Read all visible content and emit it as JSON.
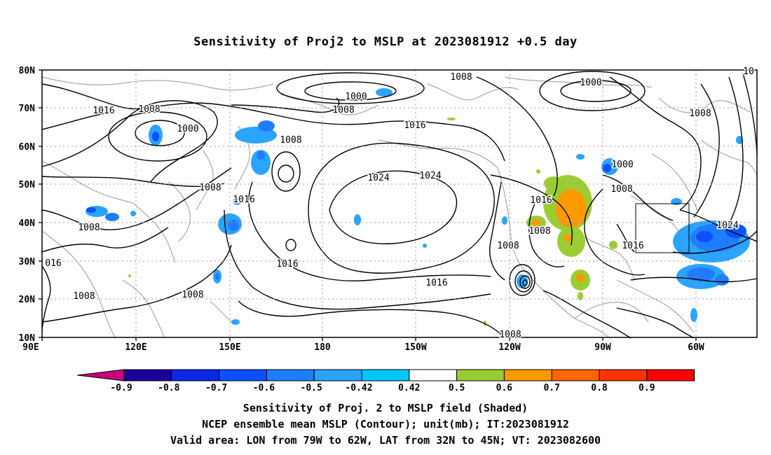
{
  "title": "Sensitivity of Proj2 to MSLP at 2023081912 +0.5 day",
  "map": {
    "lat_labels": [
      "80N",
      "70N",
      "60N",
      "50N",
      "40N",
      "30N",
      "20N",
      "10N"
    ],
    "lon_labels": [
      "90E",
      "120E",
      "150E",
      "180",
      "150W",
      "120W",
      "90W",
      "60W"
    ],
    "contour_labels": [
      "1000",
      "1008",
      "1016",
      "1024",
      "016",
      "10"
    ],
    "coastline_color": "#a8a8a8",
    "contour_color": "#000000"
  },
  "colorbar": {
    "labels": [
      "-0.9",
      "-0.8",
      "-0.7",
      "-0.6",
      "-0.5",
      "-0.42",
      "0.42",
      "0.5",
      "0.6",
      "0.7",
      "0.8",
      "0.9"
    ],
    "colors": [
      "#c8007a",
      "#1a0099",
      "#0a28e6",
      "#0a50ff",
      "#1e7dff",
      "#2aa4ff",
      "#00c8ff",
      "#ffffff",
      "#9acd32",
      "#ff9900",
      "#ff6600",
      "#ff3300",
      "#ff0000",
      "#ff99cc"
    ]
  },
  "captions": {
    "line1": "Sensitivity of Proj. 2 to MSLP field (Shaded)",
    "line2": "NCEP ensemble mean MSLP (Contour); unit(mb); IT:2023081912",
    "line3": "Valid area: LON from 79W to 62W, LAT from 32N to 45N; VT: 2023082600"
  }
}
